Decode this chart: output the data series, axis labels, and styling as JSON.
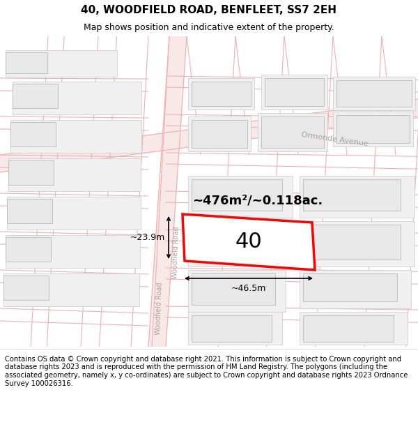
{
  "title": "40, WOODFIELD ROAD, BENFLEET, SS7 2EH",
  "subtitle": "Map shows position and indicative extent of the property.",
  "footer": "Contains OS data © Crown copyright and database right 2021. This information is subject to Crown copyright and database rights 2023 and is reproduced with the permission of HM Land Registry. The polygons (including the associated geometry, namely x, y co-ordinates) are subject to Crown copyright and database rights 2023 Ordnance Survey 100026316.",
  "map_bg": "#ffffff",
  "header_bg": "#ffffff",
  "footer_bg": "#ffffff",
  "title_fontsize": 11,
  "subtitle_fontsize": 9,
  "footer_fontsize": 7.2,
  "area_label": "~476m²/~0.118ac.",
  "property_number": "40",
  "dim_width": "~46.5m",
  "dim_height": "~23.9m",
  "property_color": "#ff0000",
  "road_line_color": "#f0b0b0",
  "building_fill": "#e8e8e8",
  "building_edge": "#b0b0b0",
  "road_label_color": "#b0a0a0",
  "block_fill": "#f0f0f0",
  "block_edge": "#c8c8c8"
}
